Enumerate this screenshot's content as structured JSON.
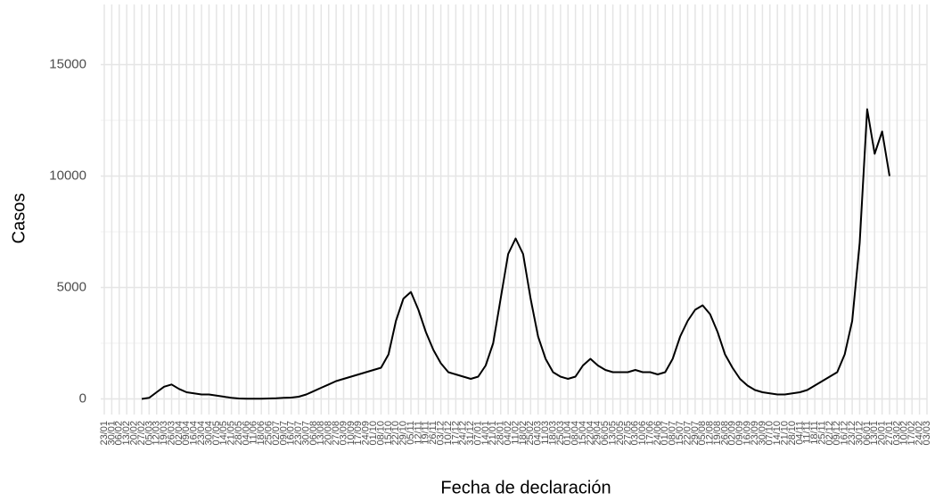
{
  "chart_data": {
    "type": "line",
    "x_label": "Fecha de declaración",
    "y_label": "Casos",
    "categories": [
      "23/01",
      "30/01",
      "06/02",
      "13/02",
      "20/02",
      "27/02",
      "05/03",
      "12/03",
      "19/03",
      "26/03",
      "02/04",
      "09/04",
      "16/04",
      "23/04",
      "30/04",
      "07/05",
      "14/05",
      "21/05",
      "28/05",
      "04/06",
      "11/06",
      "18/06",
      "25/06",
      "02/07",
      "09/07",
      "16/07",
      "23/07",
      "30/07",
      "06/08",
      "13/08",
      "20/08",
      "27/08",
      "03/09",
      "10/09",
      "17/09",
      "24/09",
      "01/10",
      "08/10",
      "15/10",
      "22/10",
      "29/10",
      "05/11",
      "12/11",
      "19/11",
      "26/11",
      "03/12",
      "10/12",
      "17/12",
      "24/12",
      "31/12",
      "07/01",
      "14/01",
      "21/01",
      "28/01",
      "04/02",
      "11/02",
      "18/02",
      "25/02",
      "04/03",
      "11/03",
      "18/03",
      "25/03",
      "01/04",
      "08/04",
      "15/04",
      "22/04",
      "29/04",
      "06/05",
      "13/05",
      "20/05",
      "27/05",
      "03/06",
      "10/06",
      "17/06",
      "24/06",
      "01/07",
      "08/07",
      "15/07",
      "22/07",
      "29/07",
      "05/08",
      "12/08",
      "19/08",
      "26/08",
      "02/09",
      "09/09",
      "16/09",
      "23/09",
      "30/09",
      "07/10",
      "14/10",
      "21/10",
      "28/10",
      "04/11",
      "11/11",
      "18/11",
      "25/11",
      "02/12",
      "09/12",
      "16/12",
      "23/12",
      "30/12",
      "06/01",
      "13/01",
      "20/01",
      "27/01",
      "03/02",
      "10/02",
      "17/02",
      "24/02",
      "03/03"
    ],
    "series": [
      {
        "name": "Casos",
        "color": "#000000",
        "values": [
          null,
          null,
          null,
          null,
          null,
          0,
          50,
          300,
          550,
          650,
          450,
          300,
          250,
          200,
          200,
          150,
          100,
          50,
          20,
          10,
          10,
          10,
          20,
          30,
          50,
          60,
          100,
          200,
          350,
          500,
          650,
          800,
          900,
          1000,
          1100,
          1200,
          1300,
          1400,
          2000,
          3500,
          4500,
          4800,
          4000,
          3000,
          2200,
          1600,
          1200,
          1100,
          1000,
          900,
          1000,
          1500,
          2500,
          4500,
          6500,
          7200,
          6500,
          4500,
          2800,
          1800,
          1200,
          1000,
          900,
          1000,
          1500,
          1800,
          1500,
          1300,
          1200,
          1200,
          1200,
          1300,
          1200,
          1200,
          1100,
          1200,
          1800,
          2800,
          3500,
          4000,
          4200,
          3800,
          3000,
          2000,
          1400,
          900,
          600,
          400,
          300,
          250,
          200,
          200,
          250,
          300,
          400,
          600,
          800,
          1000,
          1200,
          2000,
          3500,
          7000,
          13000,
          11000,
          12000,
          10000,
          null,
          null,
          null,
          null,
          null
        ]
      }
    ],
    "ylim": [
      -700,
      17700
    ],
    "yticks": [
      0,
      5000,
      10000,
      15000
    ],
    "grid": true
  }
}
